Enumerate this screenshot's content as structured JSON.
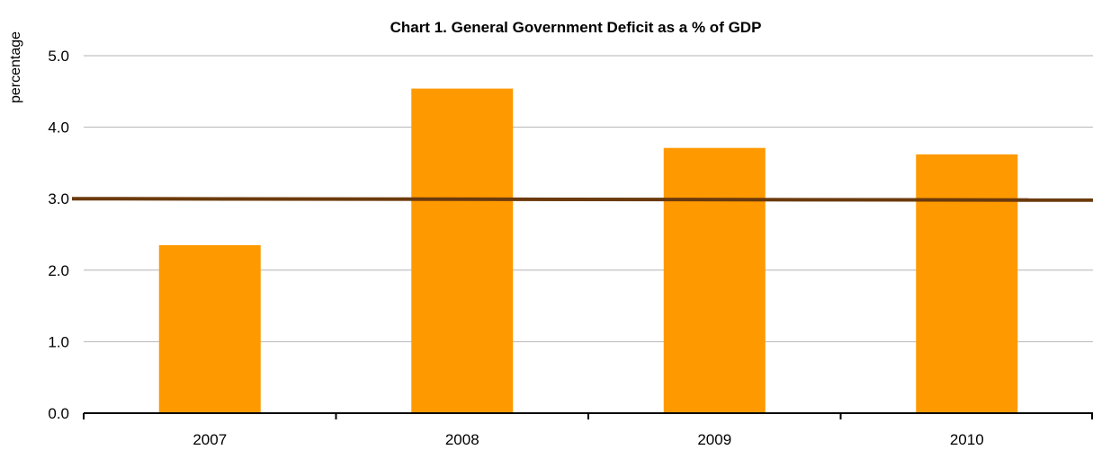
{
  "chart_data": {
    "type": "bar",
    "title": "Chart 1.  General Government Deficit as a % of GDP",
    "ylabel": "percentage",
    "xlabel": "",
    "categories": [
      "2007",
      "2008",
      "2009",
      "2010"
    ],
    "series": [
      {
        "values": [
          2.35,
          4.54,
          3.71,
          3.62
        ],
        "color": "#ff9900"
      }
    ],
    "reference_line": {
      "y_start": 3.0,
      "y_end": 2.98,
      "color": "#6b3a0c"
    },
    "ylim": [
      0,
      5
    ],
    "yticks": [
      "0.0",
      "1.0",
      "2.0",
      "3.0",
      "4.0",
      "5.0"
    ],
    "grid": true,
    "legend": "none"
  }
}
